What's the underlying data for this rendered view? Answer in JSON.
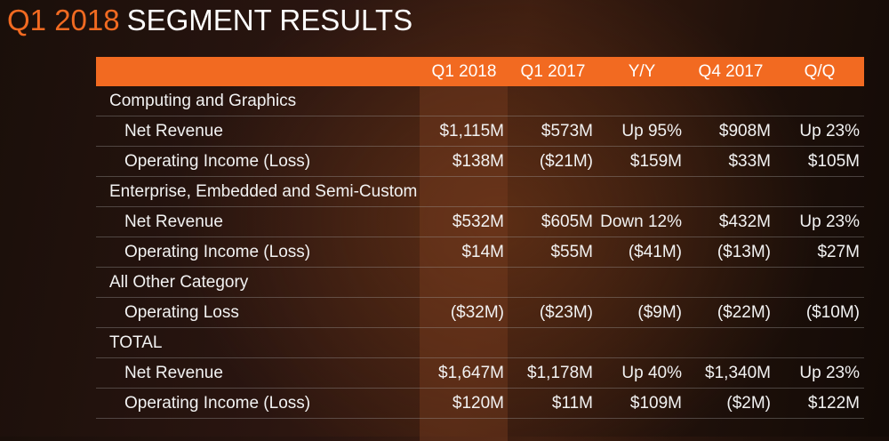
{
  "title": {
    "accent": "Q1 2018",
    "main": "SEGMENT RESULTS"
  },
  "table": {
    "columns": [
      "",
      "Q1 2018",
      "Q1 2017",
      "Y/Y",
      "Q4 2017",
      "Q/Q"
    ],
    "rows": [
      {
        "type": "group",
        "label": "Computing and Graphics",
        "values": []
      },
      {
        "type": "item",
        "label": "Net Revenue",
        "values": [
          "$1,115M",
          "$573M",
          "Up 95%",
          "$908M",
          "Up 23%"
        ]
      },
      {
        "type": "item",
        "label": "Operating Income (Loss)",
        "values": [
          "$138M",
          "($21M)",
          "$159M",
          "$33M",
          "$105M"
        ]
      },
      {
        "type": "group",
        "label": "Enterprise, Embedded and Semi-Custom",
        "values": []
      },
      {
        "type": "item",
        "label": "Net Revenue",
        "values": [
          "$532M",
          "$605M",
          "Down 12%",
          "$432M",
          "Up 23%"
        ]
      },
      {
        "type": "item",
        "label": "Operating Income (Loss)",
        "values": [
          "$14M",
          "$55M",
          "($41M)",
          "($13M)",
          "$27M"
        ]
      },
      {
        "type": "group",
        "label": "All Other Category",
        "values": []
      },
      {
        "type": "item",
        "label": "Operating Loss",
        "values": [
          "($32M)",
          "($23M)",
          "($9M)",
          "($22M)",
          "($10M)"
        ]
      },
      {
        "type": "group",
        "label": "TOTAL",
        "values": []
      },
      {
        "type": "item",
        "label": "Net Revenue",
        "values": [
          "$1,647M",
          "$1,178M",
          "Up 40%",
          "$1,340M",
          "Up 23%"
        ]
      },
      {
        "type": "item",
        "label": "Operating Income (Loss)",
        "values": [
          "$120M",
          "$11M",
          "$109M",
          "($2M)",
          "$122M"
        ]
      }
    ]
  },
  "colors": {
    "accent": "#f26a21",
    "background": "#1e100a",
    "text": "#f2f2f2"
  }
}
